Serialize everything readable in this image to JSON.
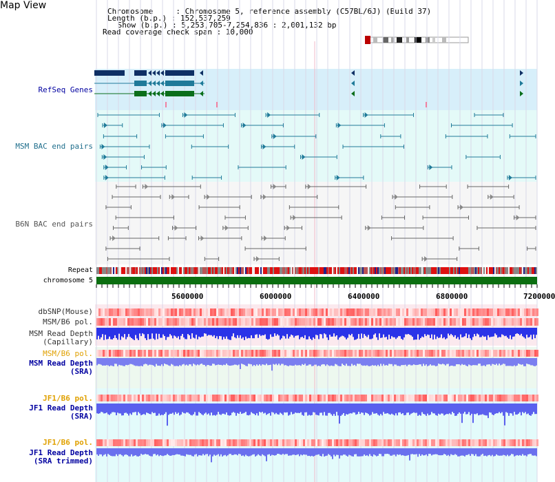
{
  "title": "Map View",
  "info": {
    "line1": "Chromosome     : Chromosome 5, reference assembly (C57BL/6J) (Build 37)",
    "line2": "Length (b.p.) : 152,537,259",
    "line3": " Show (b.p.) : 5,253,705-7,254,836 : 2,001,132 bp",
    "line4": "Read coverage check span : 10,000"
  },
  "tracks": {
    "refseq": "RefSeq Genes",
    "msm_bac": "MSM BAC end pairs",
    "b6n_bac": "B6N BAC end pairs",
    "repeat": "Repeat",
    "chromosome": "chromosome 5",
    "dbsnp": "dbSNP(Mouse)",
    "msm_b6_pol": "MSM/B6 pol.",
    "msm_depth_cap_1": "MSM Read Depth",
    "msm_depth_cap_2": "(Capillary)",
    "msm_b6_pol2": "MSM/B6 pol.",
    "msm_depth_sra_1": "MSM Read Depth",
    "msm_depth_sra_2": "(SRA)",
    "jf1_b6_pol": "JF1/B6 pol.",
    "jf1_depth_sra_1": "JF1 Read Depth",
    "jf1_depth_sra_2": "(SRA)",
    "jf1_b6_pol2": "JF1/B6 pol.",
    "jf1_depth_trim_1": "JF1 Read Depth",
    "jf1_depth_trim_2": "(SRA trimmed)"
  },
  "axis": {
    "ticks": [
      "5600000",
      "6000000",
      "6400000",
      "6800000",
      "7200000"
    ]
  },
  "colors": {
    "refseq_bg": "#d7effa",
    "msm_bg": "#e4faf8",
    "snp_bg": "#fbe9ee",
    "depth_bg": "#edf8ef",
    "jf1_bg": "#e3fbfb",
    "navy": "#0f2f64",
    "teal": "#1f7a99",
    "green": "#0a6e1a",
    "chrom_green": "#0b6e10",
    "depth_blue": "#1a22dd",
    "orange_label": "#e0a000",
    "blue_label": "#0000a0"
  }
}
